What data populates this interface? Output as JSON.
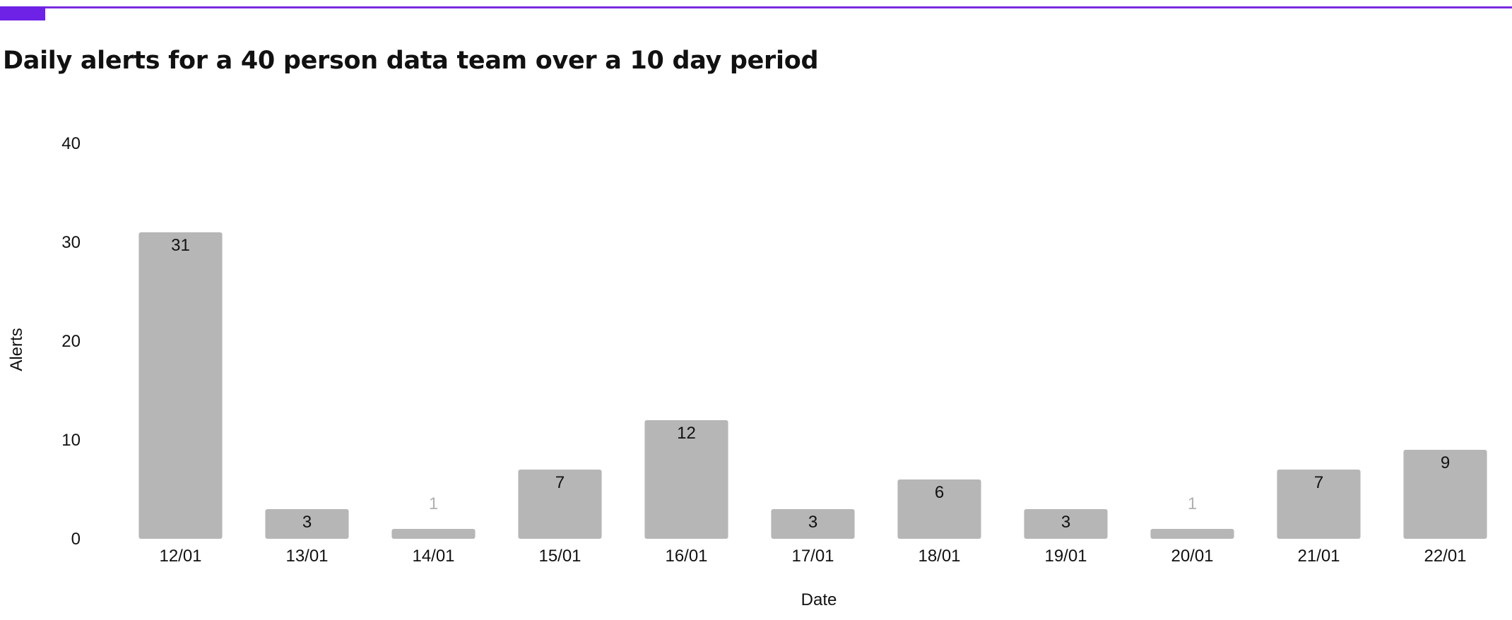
{
  "colors": {
    "accent": "#7a2be0",
    "bar": "#b6b6b6",
    "label_inside": "#111111",
    "label_outside": "#b0b0b0"
  },
  "chart_data": {
    "type": "bar",
    "title": "Daily alerts for a 40 person data team over a 10 day period",
    "xlabel": "Date",
    "ylabel": "Alerts",
    "ylim": [
      0,
      40
    ],
    "yticks": [
      0,
      10,
      20,
      30,
      40
    ],
    "grid": false,
    "categories": [
      "12/01",
      "13/01",
      "14/01",
      "15/01",
      "16/01",
      "17/01",
      "18/01",
      "19/01",
      "20/01",
      "21/01",
      "22/01"
    ],
    "values": [
      31,
      3,
      1,
      7,
      12,
      3,
      6,
      3,
      1,
      7,
      9
    ]
  }
}
